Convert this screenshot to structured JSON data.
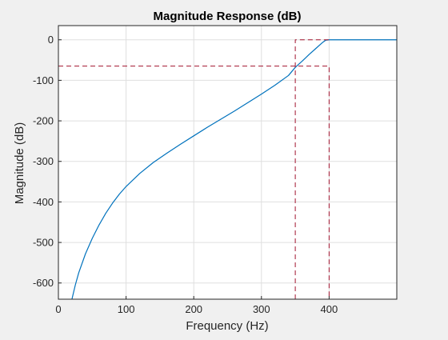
{
  "colors": {
    "figure_background": "#f0f0f0",
    "axes_background": "#ffffff",
    "grid": "#dfdfdf",
    "axis": "#262626",
    "response_line": "#0072bd",
    "spec_mask": "#a2142f"
  },
  "chart_data": {
    "type": "line",
    "title": "Magnitude Response (dB)",
    "xlabel": "Frequency (Hz)",
    "ylabel": "Magnitude (dB)",
    "xlim": [
      0,
      500
    ],
    "ylim": [
      -640,
      35
    ],
    "xticks": [
      0,
      100,
      200,
      300,
      400
    ],
    "yticks": [
      0,
      -100,
      -200,
      -300,
      -400,
      -500,
      -600
    ],
    "grid": true,
    "series": [
      {
        "line": "solid",
        "x": [
          20,
          25,
          30,
          40,
          50,
          60,
          70,
          80,
          90,
          100,
          120,
          140,
          160,
          180,
          200,
          220,
          240,
          260,
          280,
          300,
          320,
          340,
          350,
          360,
          370,
          380,
          390,
          395,
          400,
          420,
          440,
          460,
          480,
          500
        ],
        "y": [
          -640,
          -605,
          -575,
          -528,
          -490,
          -457,
          -428,
          -403,
          -381,
          -362,
          -330,
          -303,
          -280,
          -258,
          -237,
          -216,
          -196,
          -176,
          -155,
          -134,
          -112,
          -88,
          -68,
          -53,
          -37,
          -22,
          -7,
          -1,
          0,
          0,
          0,
          0,
          0,
          0
        ]
      },
      {
        "line": "dashed",
        "x": [
          0,
          400,
          400
        ],
        "y": [
          -65,
          -65,
          -640
        ]
      },
      {
        "line": "dashed",
        "x": [
          350,
          350,
          400
        ],
        "y": [
          -640,
          0,
          0
        ]
      }
    ]
  }
}
